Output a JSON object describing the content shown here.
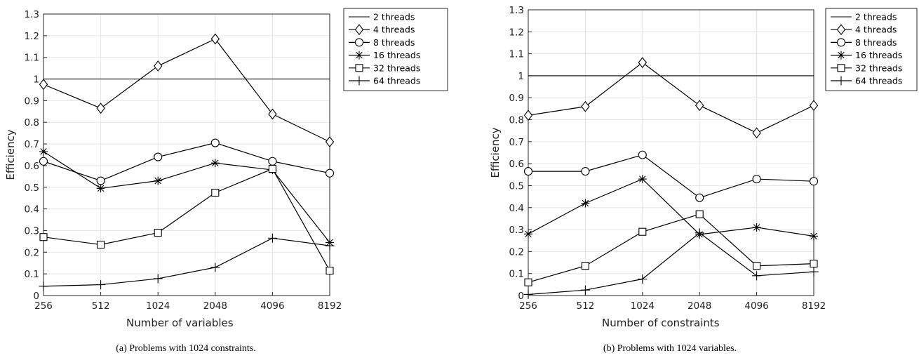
{
  "chart_data": [
    {
      "type": "line",
      "caption": "(a) Problems with 1024 constraints.",
      "xlabel": "Number of variables",
      "ylabel": "Efficiency",
      "categories": [
        "256",
        "512",
        "1024",
        "2048",
        "4096",
        "8192"
      ],
      "ylim": [
        0,
        1.3
      ],
      "yticks": [
        "0",
        "0.1",
        "0.2",
        "0.3",
        "0.4",
        "0.5",
        "0.6",
        "0.7",
        "0.8",
        "0.9",
        "1",
        "1.1",
        "1.2",
        "1.3"
      ],
      "grid": true,
      "legend_position": "outside-top-right",
      "series": [
        {
          "name": "2 threads",
          "marker": "none",
          "values": [
            1,
            1,
            1,
            1,
            1,
            1
          ]
        },
        {
          "name": "4 threads",
          "marker": "diamond",
          "values": [
            0.975,
            0.865,
            1.06,
            1.185,
            0.838,
            0.71
          ]
        },
        {
          "name": "8 threads",
          "marker": "circle",
          "values": [
            0.62,
            0.53,
            0.64,
            0.705,
            0.62,
            0.565
          ]
        },
        {
          "name": "16 threads",
          "marker": "star",
          "values": [
            0.665,
            0.495,
            0.53,
            0.612,
            0.58,
            0.245
          ]
        },
        {
          "name": "32 threads",
          "marker": "square",
          "values": [
            0.27,
            0.235,
            0.29,
            0.475,
            0.585,
            0.115
          ]
        },
        {
          "name": "64 threads",
          "marker": "plus",
          "values": [
            0.043,
            0.05,
            0.078,
            0.13,
            0.265,
            0.23
          ]
        }
      ]
    },
    {
      "type": "line",
      "caption": "(b) Problems with 1024 variables.",
      "xlabel": "Number of constraints",
      "ylabel": "Efficiency",
      "categories": [
        "256",
        "512",
        "1024",
        "2048",
        "4096",
        "8192"
      ],
      "ylim": [
        0,
        1.3
      ],
      "yticks": [
        "0",
        "0.1",
        "0.2",
        "0.3",
        "0.4",
        "0.5",
        "0.6",
        "0.7",
        "0.8",
        "0.9",
        "1",
        "1.1",
        "1.2",
        "1.3"
      ],
      "grid": true,
      "legend_position": "outside-top-right",
      "series": [
        {
          "name": "2 threads",
          "marker": "none",
          "values": [
            1,
            1,
            1,
            1,
            1,
            1
          ]
        },
        {
          "name": "4 threads",
          "marker": "diamond",
          "values": [
            0.82,
            0.86,
            1.06,
            0.865,
            0.74,
            0.865
          ]
        },
        {
          "name": "8 threads",
          "marker": "circle",
          "values": [
            0.565,
            0.565,
            0.64,
            0.445,
            0.53,
            0.52
          ]
        },
        {
          "name": "16 threads",
          "marker": "star",
          "values": [
            0.28,
            0.42,
            0.53,
            0.278,
            0.31,
            0.27
          ]
        },
        {
          "name": "32 threads",
          "marker": "square",
          "values": [
            0.06,
            0.135,
            0.29,
            0.37,
            0.135,
            0.145
          ]
        },
        {
          "name": "64 threads",
          "marker": "plus",
          "values": [
            0.005,
            0.025,
            0.075,
            0.285,
            0.09,
            0.108
          ]
        }
      ]
    }
  ]
}
